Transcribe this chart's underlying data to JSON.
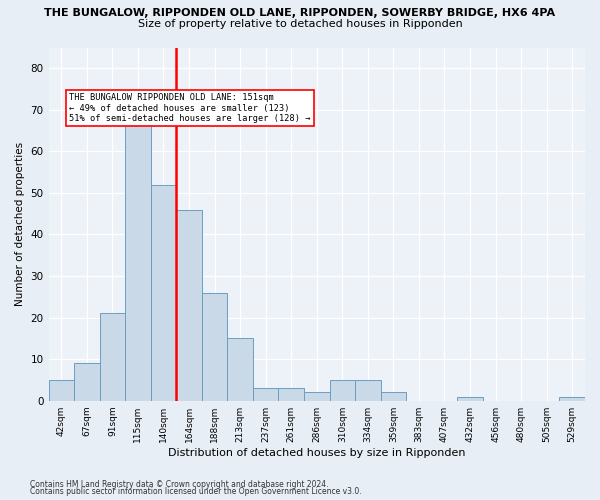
{
  "title_line1": "THE BUNGALOW, RIPPONDEN OLD LANE, RIPPONDEN, SOWERBY BRIDGE, HX6 4PA",
  "title_line2": "Size of property relative to detached houses in Ripponden",
  "xlabel": "Distribution of detached houses by size in Ripponden",
  "ylabel": "Number of detached properties",
  "bin_labels": [
    "42sqm",
    "67sqm",
    "91sqm",
    "115sqm",
    "140sqm",
    "164sqm",
    "188sqm",
    "213sqm",
    "237sqm",
    "261sqm",
    "286sqm",
    "310sqm",
    "334sqm",
    "359sqm",
    "383sqm",
    "407sqm",
    "432sqm",
    "456sqm",
    "480sqm",
    "505sqm",
    "529sqm"
  ],
  "bar_heights": [
    5,
    9,
    21,
    68,
    52,
    46,
    26,
    15,
    3,
    3,
    2,
    5,
    5,
    2,
    0,
    0,
    1,
    0,
    0,
    0,
    1
  ],
  "bar_color": "#c9d9e8",
  "bar_edge_color": "#6a9fc0",
  "ref_line_color": "red",
  "annotation_line1": "THE BUNGALOW RIPPONDEN OLD LANE: 151sqm",
  "annotation_line2": "← 49% of detached houses are smaller (123)",
  "annotation_line3": "51% of semi-detached houses are larger (128) →",
  "ylim": [
    0,
    85
  ],
  "yticks": [
    0,
    10,
    20,
    30,
    40,
    50,
    60,
    70,
    80
  ],
  "footnote1": "Contains HM Land Registry data © Crown copyright and database right 2024.",
  "footnote2": "Contains public sector information licensed under the Open Government Licence v3.0.",
  "bg_color": "#e8eef5",
  "plot_bg_color": "#edf2f8"
}
